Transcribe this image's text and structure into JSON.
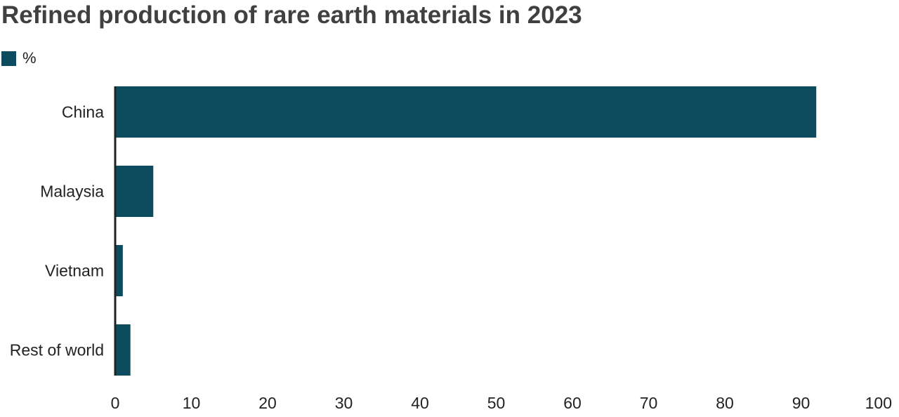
{
  "colors": {
    "bar": "#0d4c5f",
    "axis": "#222222"
  },
  "chart_data": {
    "type": "bar",
    "orientation": "horizontal",
    "title": "Refined production of rare earth materials in 2023",
    "categories": [
      "China",
      "Malaysia",
      "Vietnam",
      "Rest of world"
    ],
    "series": [
      {
        "name": "%",
        "values": [
          92,
          5,
          1,
          2
        ]
      }
    ],
    "xlim": [
      0,
      100
    ],
    "xticks": [
      "0",
      "10",
      "20",
      "30",
      "40",
      "50",
      "60",
      "70",
      "80",
      "90",
      "100"
    ],
    "grid": false,
    "legend": "top-left"
  }
}
